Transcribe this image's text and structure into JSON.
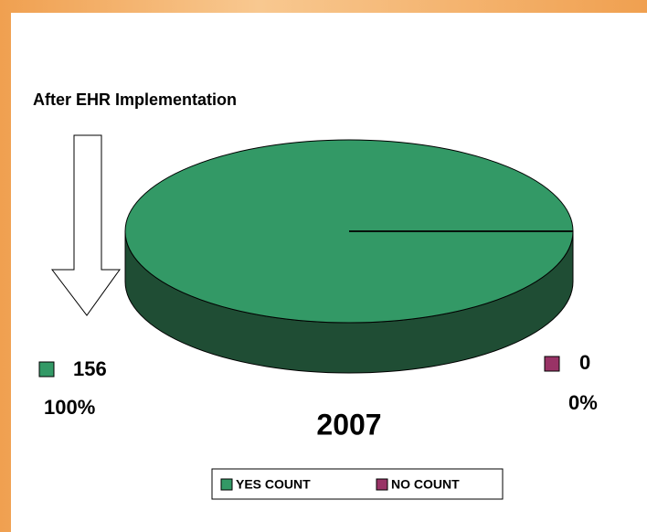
{
  "chart_data": {
    "type": "pie",
    "title": "After EHR Implementation",
    "subtitle": "2007",
    "categories": [
      "YES COUNT",
      "NO COUNT"
    ],
    "values": [
      156,
      0
    ],
    "percentages": [
      100,
      0
    ],
    "percentage_labels": [
      "100%",
      "0%"
    ],
    "colors": [
      "#339966",
      "#993366"
    ],
    "side_colors": [
      "#1f4d34",
      "#4d1a33"
    ],
    "legend": "bottom"
  }
}
